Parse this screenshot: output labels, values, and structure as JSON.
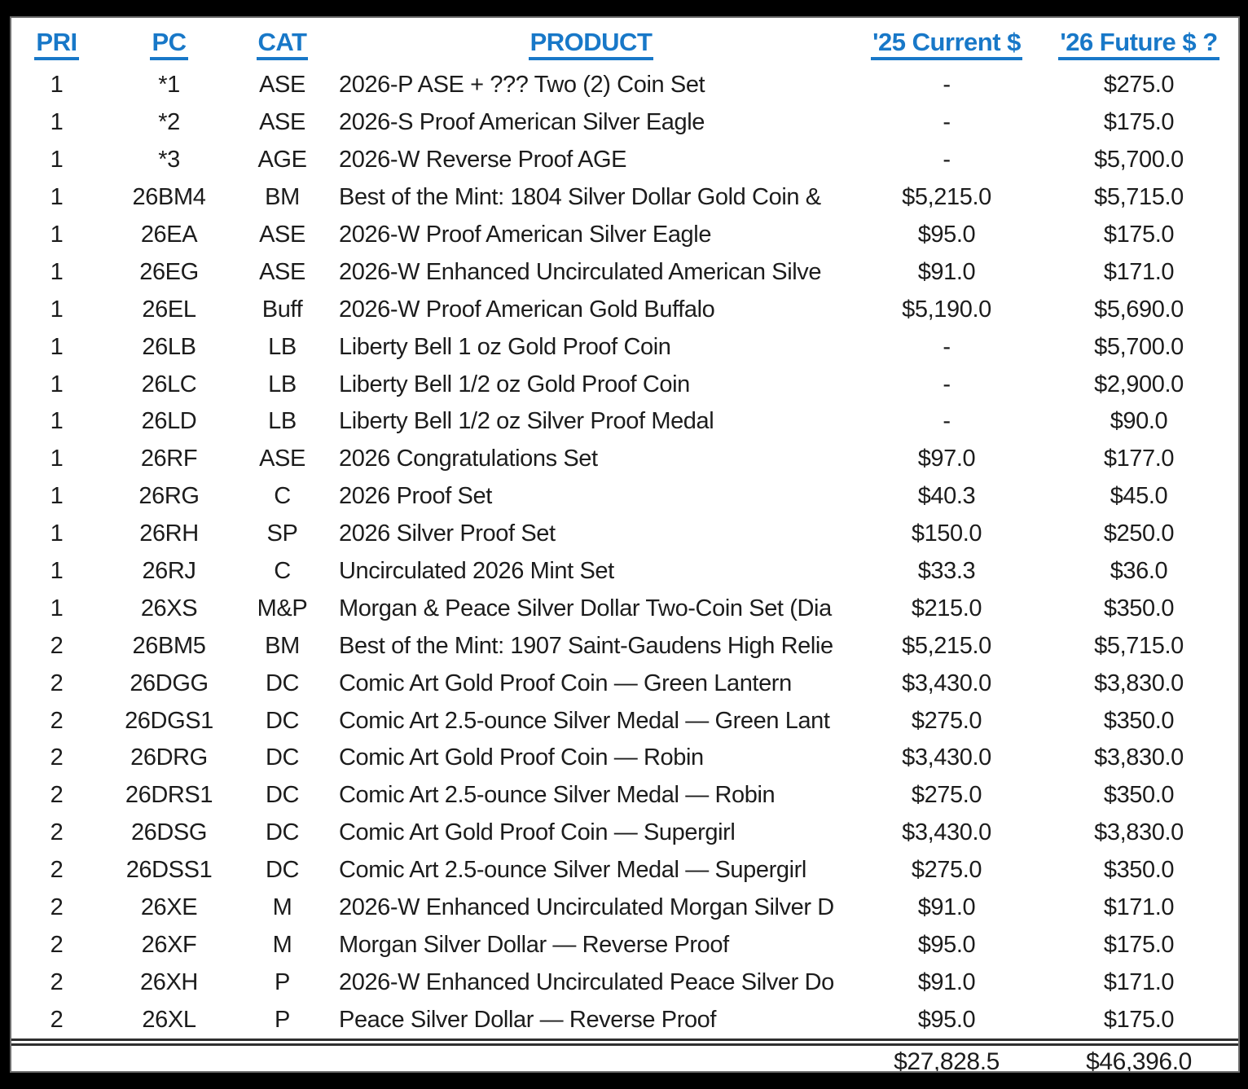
{
  "page": {
    "background_color": "#000000",
    "sheet_color": "#ffffff"
  },
  "colors": {
    "header_text": "#1878c8",
    "body_text": "#1c1c1c",
    "double_rule": "#2f2f2f"
  },
  "table": {
    "columns": [
      {
        "id": "pri",
        "label": "PRI"
      },
      {
        "id": "pc",
        "label": "PC"
      },
      {
        "id": "cat",
        "label": "CAT"
      },
      {
        "id": "product",
        "label": "PRODUCT"
      },
      {
        "id": "current",
        "label": "'25 Current $"
      },
      {
        "id": "future",
        "label": "'26 Future $ ?"
      }
    ],
    "rows": [
      {
        "pri": "1",
        "pc": "*1",
        "cat": "ASE",
        "product": "2026-P ASE + ??? Two (2) Coin Set",
        "current": "-",
        "future": "$275.0"
      },
      {
        "pri": "1",
        "pc": "*2",
        "cat": "ASE",
        "product": "2026-S Proof American Silver Eagle",
        "current": "-",
        "future": "$175.0"
      },
      {
        "pri": "1",
        "pc": "*3",
        "cat": "AGE",
        "product": "2026-W Reverse Proof AGE",
        "current": "-",
        "future": "$5,700.0"
      },
      {
        "pri": "1",
        "pc": "26BM4",
        "cat": "BM",
        "product": "Best of the Mint: 1804 Silver Dollar Gold Coin & ",
        "current": "$5,215.0",
        "future": "$5,715.0"
      },
      {
        "pri": "1",
        "pc": "26EA",
        "cat": "ASE",
        "product": "2026-W Proof American Silver Eagle",
        "current": "$95.0",
        "future": "$175.0"
      },
      {
        "pri": "1",
        "pc": "26EG",
        "cat": "ASE",
        "product": "2026-W Enhanced Uncirculated American Silve",
        "current": "$91.0",
        "future": "$171.0"
      },
      {
        "pri": "1",
        "pc": "26EL",
        "cat": "Buff",
        "product": "2026-W Proof American Gold Buffalo",
        "current": "$5,190.0",
        "future": "$5,690.0"
      },
      {
        "pri": "1",
        "pc": "26LB",
        "cat": "LB",
        "product": "Liberty Bell 1 oz Gold Proof Coin",
        "current": "-",
        "future": "$5,700.0"
      },
      {
        "pri": "1",
        "pc": "26LC",
        "cat": "LB",
        "product": "Liberty Bell 1/2 oz  Gold Proof Coin",
        "current": "-",
        "future": "$2,900.0"
      },
      {
        "pri": "1",
        "pc": "26LD",
        "cat": "LB",
        "product": "Liberty Bell 1/2 oz  Silver Proof Medal",
        "current": "-",
        "future": "$90.0"
      },
      {
        "pri": "1",
        "pc": "26RF",
        "cat": "ASE",
        "product": "2026 Congratulations Set",
        "current": "$97.0",
        "future": "$177.0"
      },
      {
        "pri": "1",
        "pc": "26RG",
        "cat": "C",
        "product": "2026 Proof Set",
        "current": "$40.3",
        "future": "$45.0"
      },
      {
        "pri": "1",
        "pc": "26RH",
        "cat": "SP",
        "product": "2026 Silver Proof Set",
        "current": "$150.0",
        "future": "$250.0"
      },
      {
        "pri": "1",
        "pc": "26RJ",
        "cat": "C",
        "product": "Uncirculated 2026 Mint Set",
        "current": "$33.3",
        "future": "$36.0"
      },
      {
        "pri": "1",
        "pc": "26XS",
        "cat": "M&P",
        "product": "Morgan & Peace Silver Dollar Two-Coin Set (Dia",
        "current": "$215.0",
        "future": "$350.0"
      },
      {
        "pri": "2",
        "pc": "26BM5",
        "cat": "BM",
        "product": "Best of the Mint: 1907 Saint-Gaudens High Relie",
        "current": "$5,215.0",
        "future": "$5,715.0"
      },
      {
        "pri": "2",
        "pc": "26DGG",
        "cat": "DC",
        "product": "Comic Art Gold Proof Coin — Green Lantern",
        "current": "$3,430.0",
        "future": "$3,830.0"
      },
      {
        "pri": "2",
        "pc": "26DGS1",
        "cat": "DC",
        "product": "Comic Art 2.5-ounce Silver Medal — Green Lant",
        "current": "$275.0",
        "future": "$350.0"
      },
      {
        "pri": "2",
        "pc": "26DRG",
        "cat": "DC",
        "product": "Comic Art Gold Proof Coin — Robin",
        "current": "$3,430.0",
        "future": "$3,830.0"
      },
      {
        "pri": "2",
        "pc": "26DRS1",
        "cat": "DC",
        "product": "Comic Art 2.5-ounce Silver Medal — Robin",
        "current": "$275.0",
        "future": "$350.0"
      },
      {
        "pri": "2",
        "pc": "26DSG",
        "cat": "DC",
        "product": "Comic Art Gold Proof Coin — Supergirl",
        "current": "$3,430.0",
        "future": "$3,830.0"
      },
      {
        "pri": "2",
        "pc": "26DSS1",
        "cat": "DC",
        "product": "Comic Art 2.5-ounce Silver Medal — Supergirl",
        "current": "$275.0",
        "future": "$350.0"
      },
      {
        "pri": "2",
        "pc": "26XE",
        "cat": "M",
        "product": "2026-W Enhanced Uncirculated Morgan Silver D",
        "current": "$91.0",
        "future": "$171.0"
      },
      {
        "pri": "2",
        "pc": "26XF",
        "cat": "M",
        "product": "Morgan Silver Dollar — Reverse Proof",
        "current": "$95.0",
        "future": "$175.0"
      },
      {
        "pri": "2",
        "pc": "26XH",
        "cat": "P",
        "product": "2026-W Enhanced Uncirculated Peace Silver Do",
        "current": "$91.0",
        "future": "$171.0"
      },
      {
        "pri": "2",
        "pc": "26XL",
        "cat": "P",
        "product": "Peace Silver Dollar — Reverse Proof",
        "current": "$95.0",
        "future": "$175.0"
      }
    ],
    "totals": {
      "current": "$27,828.5",
      "future": "$46,396.0"
    }
  }
}
